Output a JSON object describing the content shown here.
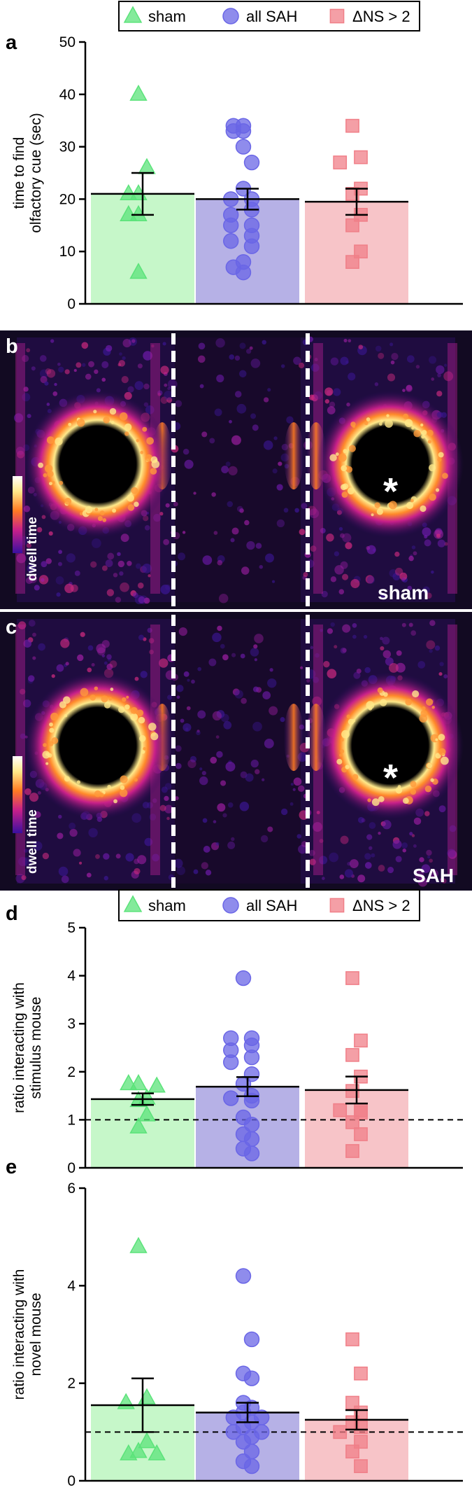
{
  "legend": {
    "items": [
      {
        "label": "sham",
        "color": "#5be37a",
        "marker": "triangle"
      },
      {
        "label": "all SAH",
        "color": "#6a66e6",
        "marker": "circle"
      },
      {
        "label": "ΔNS > 2",
        "color": "#f07f88",
        "marker": "square"
      }
    ]
  },
  "panels": {
    "b": {
      "letter": "b",
      "group_label": "sham",
      "scale_label": "dwell time",
      "marker": "*"
    },
    "c": {
      "letter": "c",
      "group_label": "SAH",
      "scale_label": "dwell time",
      "marker": "*"
    }
  },
  "colors": {
    "sham_bar": "#c6f7c9",
    "sah_bar": "#b6b1e6",
    "ns_bar": "#f7c4c8",
    "heat_low": "#1a0020",
    "heat_mid": "#b52c9a",
    "heat_high": "#ffe98a"
  },
  "chart_data": [
    {
      "id": "a",
      "letter": "a",
      "type": "bar",
      "categories": [
        "sham",
        "all SAH",
        "ΔNS > 2"
      ],
      "ylabel": [
        "time to find",
        "olfactory cue (sec)"
      ],
      "ylim": [
        0,
        50
      ],
      "yticks": [
        0,
        10,
        20,
        30,
        40,
        50
      ],
      "means": [
        21,
        20,
        19.5
      ],
      "sem": [
        4,
        2,
        2.5
      ],
      "points": [
        [
          40,
          26,
          21,
          21,
          17,
          17,
          6
        ],
        [
          34,
          34,
          33,
          33,
          30,
          27,
          22,
          20,
          20,
          18,
          17,
          15,
          15,
          13,
          12,
          11,
          8,
          7,
          6
        ],
        [
          34,
          28,
          27,
          22,
          21,
          17,
          15,
          10,
          8
        ]
      ],
      "ref_line": null
    },
    {
      "id": "d",
      "letter": "d",
      "type": "bar",
      "categories": [
        "sham",
        "all SAH",
        "ΔNS > 2"
      ],
      "ylabel": [
        "ratio interacting with",
        "stimulus mouse"
      ],
      "ylim": [
        0,
        5
      ],
      "yticks": [
        0,
        1,
        2,
        3,
        4,
        5
      ],
      "means": [
        1.43,
        1.69,
        1.62
      ],
      "sem": [
        0.12,
        0.2,
        0.28
      ],
      "points": [
        [
          1.75,
          1.75,
          1.7,
          1.45,
          1.4,
          1.1,
          0.85
        ],
        [
          3.95,
          2.7,
          2.7,
          2.55,
          2.45,
          2.3,
          2.2,
          1.95,
          1.75,
          1.5,
          1.45,
          1.4,
          1.05,
          0.9,
          0.7,
          0.6,
          0.4,
          0.3
        ],
        [
          3.95,
          2.65,
          2.35,
          1.9,
          1.6,
          1.2,
          1.2,
          1.15,
          0.95,
          0.7,
          0.35
        ]
      ],
      "ref_line": 1
    },
    {
      "id": "e",
      "letter": "e",
      "type": "bar",
      "categories": [
        "sham",
        "all SAH",
        "ΔNS > 2"
      ],
      "ylabel": [
        "ratio interacting with",
        "novel mouse"
      ],
      "ylim": [
        0,
        6
      ],
      "yticks": [
        0,
        2,
        4,
        6
      ],
      "means": [
        1.55,
        1.4,
        1.25
      ],
      "sem": [
        0.55,
        0.2,
        0.2
      ],
      "points": [
        [
          4.8,
          1.7,
          1.6,
          0.8,
          0.6,
          0.55,
          0.55
        ],
        [
          4.2,
          2.9,
          2.2,
          2.1,
          1.6,
          1.5,
          1.4,
          1.3,
          1.3,
          1.2,
          1.1,
          1.0,
          1.0,
          0.9,
          0.8,
          0.6,
          0.4,
          0.3
        ],
        [
          2.9,
          2.2,
          1.6,
          1.4,
          1.2,
          1.1,
          1.0,
          0.8,
          0.6,
          0.3
        ]
      ],
      "ref_line": 1
    }
  ]
}
